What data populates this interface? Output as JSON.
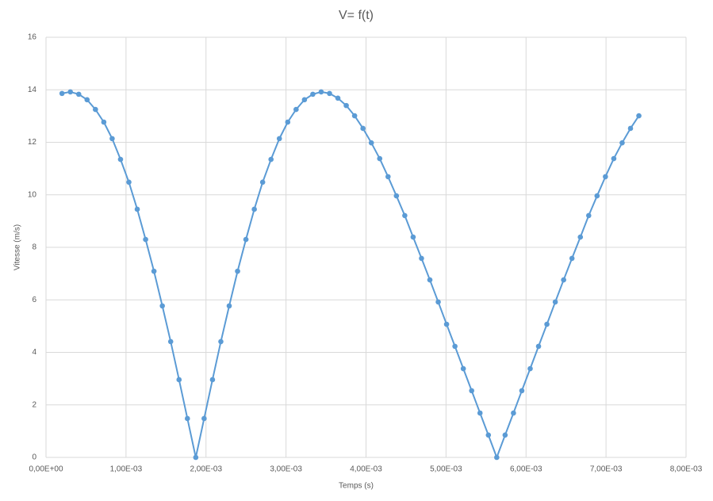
{
  "chart_data": {
    "type": "scatter",
    "title": "V= f(t)",
    "xlabel": "Temps (s)",
    "ylabel": "Vitesse (m/s)",
    "color": "#5b9bd5",
    "grid": true,
    "xlim": [
      0,
      0.008
    ],
    "ylim": [
      0,
      16
    ],
    "xticks": [
      {
        "value": 0,
        "label": "0,00E+00"
      },
      {
        "value": 0.001,
        "label": "1,00E-03"
      },
      {
        "value": 0.002,
        "label": "2,00E-03"
      },
      {
        "value": 0.003,
        "label": "3,00E-03"
      },
      {
        "value": 0.004,
        "label": "4,00E-03"
      },
      {
        "value": 0.005,
        "label": "5,00E-03"
      },
      {
        "value": 0.006,
        "label": "6,00E-03"
      },
      {
        "value": 0.007,
        "label": "7,00E-03"
      },
      {
        "value": 0.008,
        "label": "8,00E-03"
      }
    ],
    "yticks": [
      0,
      2,
      4,
      6,
      8,
      10,
      12,
      14,
      16
    ],
    "x": [
      0.0002,
      0.0003045,
      0.000409,
      0.0005135,
      0.000618,
      0.0007225,
      0.000827,
      0.0009315,
      0.001036,
      0.0011405,
      0.001245,
      0.0013495,
      0.001454,
      0.0015585,
      0.001663,
      0.0017675,
      0.001872,
      0.0019765,
      0.002081,
      0.0021855,
      0.00229,
      0.0023945,
      0.002499,
      0.0026035,
      0.002708,
      0.0028125,
      0.002917,
      0.0030215,
      0.003126,
      0.0032305,
      0.003335,
      0.0034395,
      0.003544,
      0.0036485,
      0.003753,
      0.0038575,
      0.003962,
      0.0040665,
      0.004171,
      0.0042755,
      0.00438,
      0.0044845,
      0.004589,
      0.0046935,
      0.004798,
      0.0049025,
      0.005007,
      0.0051115,
      0.005216,
      0.0053205,
      0.005425,
      0.0055295,
      0.005634,
      0.0057385,
      0.005843,
      0.0059475,
      0.006052,
      0.0061565,
      0.006261,
      0.0063655,
      0.00647,
      0.0065745,
      0.006679,
      0.0067835,
      0.006888,
      0.0069925,
      0.007097,
      0.0072015,
      0.007306,
      0.0074105
    ],
    "values": [
      13.86,
      13.92,
      13.83,
      13.62,
      13.25,
      12.77,
      12.14,
      11.35,
      10.48,
      9.45,
      8.3,
      7.09,
      5.77,
      4.41,
      2.96,
      1.48,
      0,
      1.48,
      2.96,
      4.41,
      5.77,
      7.09,
      8.3,
      9.45,
      10.48,
      11.35,
      12.14,
      12.77,
      13.25,
      13.62,
      13.83,
      13.92,
      13.86,
      13.68,
      13.4,
      13.01,
      12.53,
      11.98,
      11.38,
      10.69,
      9.96,
      9.21,
      8.39,
      7.58,
      6.76,
      5.92,
      5.07,
      4.23,
      3.38,
      2.54,
      1.69,
      0.85,
      0,
      0.85,
      1.69,
      2.54,
      3.38,
      4.23,
      5.07,
      5.92,
      6.76,
      7.58,
      8.39,
      9.21,
      9.96,
      10.69,
      11.38,
      11.98,
      12.53,
      13.01
    ]
  }
}
